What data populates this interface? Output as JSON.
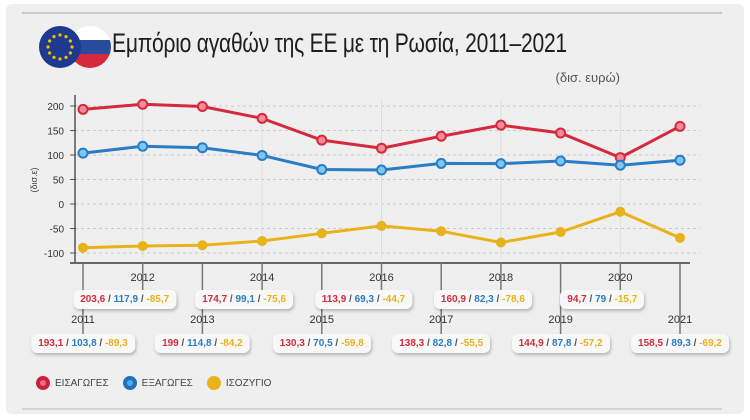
{
  "chart_data": {
    "type": "line",
    "title": "Εμπόριο αγαθών της ΕΕ με τη Ρωσία, 2011–2021",
    "subtitle": "(δισ. ευρώ)",
    "ylabel": "(δισ.ε)",
    "xlabel": "",
    "ylim": [
      -100,
      200
    ],
    "yticks": [
      "200",
      "150",
      "100",
      "50",
      "0",
      "-50",
      "-100"
    ],
    "grid": true,
    "legend": "bottom-left",
    "x": [
      "2011",
      "2012",
      "2013",
      "2014",
      "2015",
      "2016",
      "2017",
      "2018",
      "2019",
      "2020",
      "2021"
    ],
    "series": [
      {
        "name": "ΕΙΣΑΓΩΓΕΣ",
        "color": "#d42a3c",
        "values": [
          193.1,
          203.6,
          199,
          174.7,
          130.3,
          113.9,
          138.3,
          160.9,
          144.9,
          94.7,
          158.5
        ],
        "labels": [
          "193,1",
          "203,6",
          "199",
          "174,7",
          "130,3",
          "113,9",
          "138,3",
          "160,9",
          "144,9",
          "94,7",
          "158,5"
        ]
      },
      {
        "name": "ΕΞΑΓΩΓΕΣ",
        "color": "#2a7cc4",
        "values": [
          103.8,
          117.9,
          114.8,
          99.1,
          70.5,
          69.3,
          82.8,
          82.3,
          87.8,
          79,
          89.3
        ],
        "labels": [
          "103,8",
          "117,9",
          "114,8",
          "99,1",
          "70,5",
          "69,3",
          "82,8",
          "82,3",
          "87,8",
          "79",
          "89,3"
        ]
      },
      {
        "name": "ΙΣΟΖΥΓΙΟ",
        "color": "#e8b21a",
        "values": [
          -89.3,
          -85.7,
          -84.2,
          -75.6,
          -59.8,
          -44.7,
          -55.5,
          -78.6,
          -57.2,
          -15.7,
          -69.2
        ],
        "labels": [
          "-89,3",
          "-85,7",
          "-84,2",
          "-75,6",
          "-59,8",
          "-44,7",
          "-55,5",
          "-78,6",
          "-57,2",
          "-15,7",
          "-69,2"
        ]
      }
    ]
  },
  "flags": [
    "EU flag",
    "Russian flag"
  ]
}
